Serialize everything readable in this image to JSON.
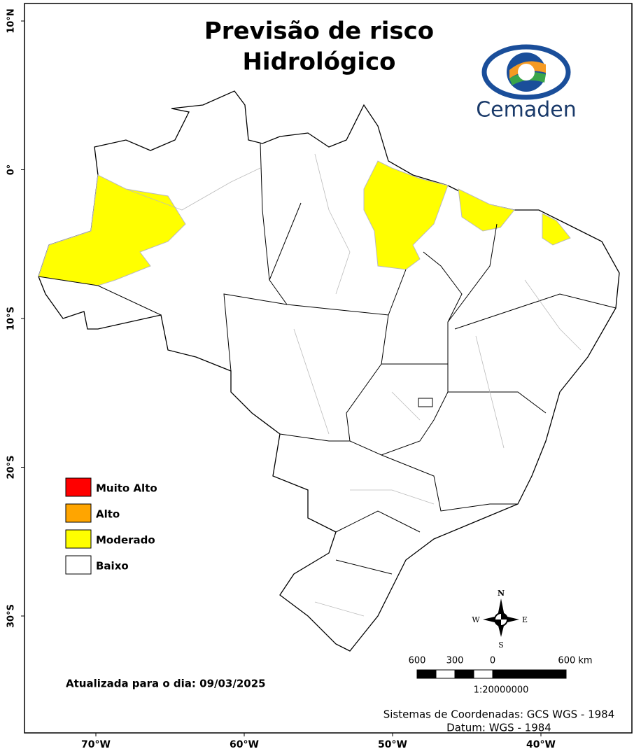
{
  "title": [
    "Previsão de risco",
    "Hidrológico"
  ],
  "logo": "Cemaden",
  "legend": [
    {
      "label": "Muito Alto",
      "color": "#ff0000"
    },
    {
      "label": "Alto",
      "color": "#ffa500"
    },
    {
      "label": "Moderado",
      "color": "#ffff00"
    },
    {
      "label": "Baixo",
      "color": "#ffffff"
    }
  ],
  "lat_labels": [
    "10°N",
    "0°",
    "10°S",
    "20°S",
    "30°S"
  ],
  "lon_labels": [
    "70°W",
    "60°W",
    "50°W",
    "40°W"
  ],
  "updated": "Atualizada para o dia: 09/03/2025",
  "scale": {
    "labels": [
      "600",
      "300",
      "0",
      "600 km"
    ],
    "ratio": "1:20000000"
  },
  "compass": {
    "n": "N",
    "e": "E",
    "s": "S",
    "w": "W"
  },
  "footer": [
    "Sistemas de Coordenadas: GCS WGS - 1984",
    "Datum: WGS - 1984"
  ]
}
